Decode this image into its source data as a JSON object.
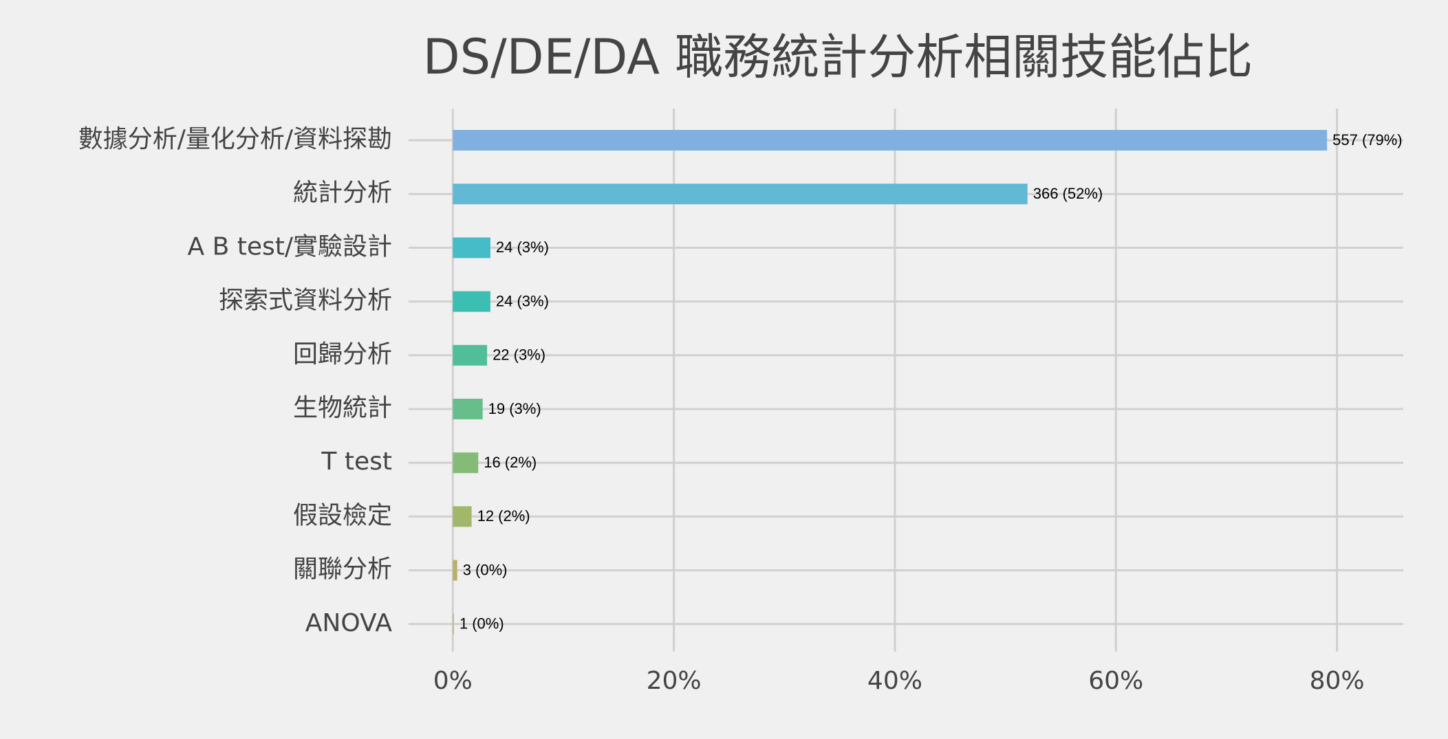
{
  "chart_data": {
    "type": "barh",
    "title": "DS/DE/DA 職務統計分析相關技能佔比",
    "categories": [
      "數據分析/量化分析/資料探勘",
      "統計分析",
      "A B test/實驗設計",
      "探索式資料分析",
      "回歸分析",
      "生物統計",
      "T test",
      "假設檢定",
      "關聯分析",
      "ANOVA"
    ],
    "values": [
      79.1,
      52.0,
      3.4,
      3.4,
      3.1,
      2.7,
      2.3,
      1.7,
      0.4,
      0.1
    ],
    "value_labels": [
      "557 (79%)",
      "366 (52%)",
      "24 (3%)",
      "24 (3%)",
      "22 (3%)",
      "19 (3%)",
      "16 (2%)",
      "12 (2%)",
      "3 (0%)",
      "1 (0%)"
    ],
    "colors": [
      "#7fb0e0",
      "#62b9d6",
      "#45bcc8",
      "#3cbeb3",
      "#50be98",
      "#67be8a",
      "#84bb76",
      "#a2b76c",
      "#b8b06a",
      "#c9b17f"
    ],
    "xlim": [
      -4,
      86
    ],
    "xticks": [
      {
        "value": 0,
        "label": "0%"
      },
      {
        "value": 20,
        "label": "20%"
      },
      {
        "value": 40,
        "label": "40%"
      },
      {
        "value": 60,
        "label": "60%"
      },
      {
        "value": 80,
        "label": "80%"
      }
    ],
    "grid": true
  }
}
